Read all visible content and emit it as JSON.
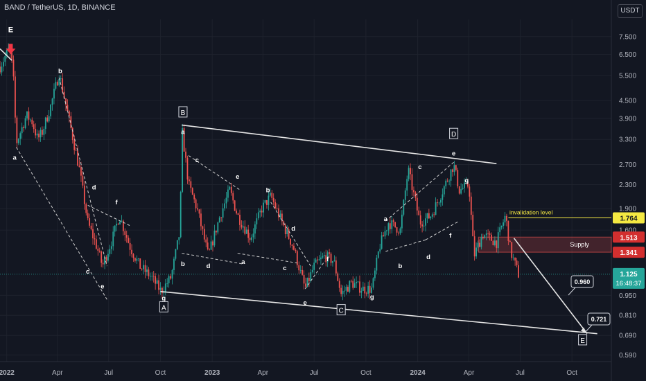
{
  "header": {
    "title": "BAND / TetherUS, 1D, BINANCE",
    "currency": "USDT"
  },
  "colors": {
    "background": "#131722",
    "up": "#26a69a",
    "down": "#ef5350",
    "grid": "#1e222d",
    "invalidation": "#f5e942",
    "supply": "#ef5350"
  },
  "chart_data": {
    "type": "candlestick",
    "yscale": "log",
    "ylim": [
      0.56,
      8.6
    ],
    "xlim": [
      "2021-12-20",
      "2024-12-10"
    ],
    "y_ticks": [
      "7.500",
      "6.500",
      "5.500",
      "4.500",
      "3.900",
      "3.300",
      "2.700",
      "2.300",
      "1.900",
      "1.600",
      "0.950",
      "0.810",
      "0.690",
      "0.590"
    ],
    "x_ticks": [
      {
        "date": "2022-01-01",
        "label": "2022"
      },
      {
        "date": "2022-04-01",
        "label": "Apr"
      },
      {
        "date": "2022-07-01",
        "label": "Jul"
      },
      {
        "date": "2022-10-01",
        "label": "Oct"
      },
      {
        "date": "2023-01-01",
        "label": "2023"
      },
      {
        "date": "2023-04-01",
        "label": "Apr"
      },
      {
        "date": "2023-07-01",
        "label": "Jul"
      },
      {
        "date": "2023-10-01",
        "label": "Oct"
      },
      {
        "date": "2024-01-01",
        "label": "2024"
      },
      {
        "date": "2024-04-01",
        "label": "Apr"
      },
      {
        "date": "2024-07-01",
        "label": "Jul"
      },
      {
        "date": "2024-10-01",
        "label": "Oct"
      }
    ],
    "price_path": [
      [
        "2021-12-20",
        5.9
      ],
      [
        "2022-01-05",
        6.8
      ],
      [
        "2022-01-12",
        5.8
      ],
      [
        "2022-01-18",
        3.2
      ],
      [
        "2022-02-05",
        4.0
      ],
      [
        "2022-02-15",
        3.8
      ],
      [
        "2022-02-25",
        3.3
      ],
      [
        "2022-03-05",
        3.5
      ],
      [
        "2022-03-20",
        4.3
      ],
      [
        "2022-04-04",
        5.6
      ],
      [
        "2022-04-20",
        4.0
      ],
      [
        "2022-05-10",
        2.6
      ],
      [
        "2022-05-25",
        1.7
      ],
      [
        "2022-06-10",
        1.4
      ],
      [
        "2022-06-20",
        1.2
      ],
      [
        "2022-07-08",
        1.5
      ],
      [
        "2022-07-20",
        1.8
      ],
      [
        "2022-08-08",
        1.4
      ],
      [
        "2022-08-25",
        1.2
      ],
      [
        "2022-09-15",
        1.1
      ],
      [
        "2022-10-02",
        0.98
      ],
      [
        "2022-10-20",
        1.1
      ],
      [
        "2022-11-05",
        1.6
      ],
      [
        "2022-11-08",
        3.6
      ],
      [
        "2022-11-20",
        2.3
      ],
      [
        "2022-12-05",
        1.9
      ],
      [
        "2022-12-25",
        1.3
      ],
      [
        "2023-01-15",
        1.8
      ],
      [
        "2023-02-01",
        2.2
      ],
      [
        "2023-02-15",
        1.8
      ],
      [
        "2023-03-10",
        1.5
      ],
      [
        "2023-03-30",
        1.9
      ],
      [
        "2023-04-15",
        2.1
      ],
      [
        "2023-05-05",
        1.7
      ],
      [
        "2023-05-25",
        1.4
      ],
      [
        "2023-06-15",
        1.0
      ],
      [
        "2023-07-01",
        1.2
      ],
      [
        "2023-07-20",
        1.3
      ],
      [
        "2023-08-05",
        1.25
      ],
      [
        "2023-08-18",
        0.96
      ],
      [
        "2023-09-05",
        1.05
      ],
      [
        "2023-09-25",
        1.0
      ],
      [
        "2023-10-12",
        1.0
      ],
      [
        "2023-10-25",
        1.4
      ],
      [
        "2023-11-10",
        1.7
      ],
      [
        "2023-12-01",
        1.6
      ],
      [
        "2023-12-15",
        2.6
      ],
      [
        "2024-01-05",
        1.7
      ],
      [
        "2024-01-25",
        1.8
      ],
      [
        "2024-02-10",
        2.1
      ],
      [
        "2024-03-05",
        2.7
      ],
      [
        "2024-03-15",
        2.2
      ],
      [
        "2024-04-01",
        2.3
      ],
      [
        "2024-04-10",
        1.3
      ],
      [
        "2024-04-25",
        1.55
      ],
      [
        "2024-05-20",
        1.45
      ],
      [
        "2024-06-05",
        1.8
      ],
      [
        "2024-06-14",
        1.35
      ],
      [
        "2024-06-28",
        1.125
      ]
    ],
    "last_price": {
      "value": 1.125,
      "label": "1.125",
      "countdown": "16:48:37"
    },
    "price_tags": [
      {
        "label": "1.764",
        "value": 1.764,
        "kind": "invalidation"
      },
      {
        "label": "1.513",
        "value": 1.513,
        "kind": "supply"
      },
      {
        "label": "1.341",
        "value": 1.341,
        "kind": "supply"
      }
    ],
    "annotations": {
      "invalidation_label": "invalidation level",
      "supply_label": "Supply",
      "target_1": "0.960",
      "target_2": "0.721"
    },
    "trendlines": [
      {
        "kind": "solid",
        "from": [
          "2022-10-01",
          0.98
        ],
        "to": [
          "2024-11-15",
          0.7
        ]
      },
      {
        "kind": "solid",
        "from": [
          "2022-11-08",
          3.7
        ],
        "to": [
          "2024-05-20",
          2.72
        ]
      },
      {
        "kind": "solid",
        "from": [
          "2021-12-20",
          6.8
        ],
        "to": [
          "2022-01-10",
          6.2
        ]
      },
      {
        "kind": "solid",
        "from": [
          "2024-06-20",
          1.5
        ],
        "to": [
          "2024-10-28",
          0.7
        ]
      },
      {
        "kind": "dashed",
        "from": [
          "2022-01-18",
          3.1
        ],
        "to": [
          "2022-06-28",
          0.92
        ]
      },
      {
        "kind": "dashed",
        "from": [
          "2022-04-04",
          5.4
        ],
        "to": [
          "2022-06-28",
          1.2
        ]
      },
      {
        "kind": "dashed",
        "from": [
          "2022-05-25",
          1.95
        ],
        "to": [
          "2022-08-10",
          1.65
        ]
      },
      {
        "kind": "dashed",
        "from": [
          "2022-11-08",
          1.33
        ],
        "to": [
          "2023-02-25",
          1.22
        ]
      },
      {
        "kind": "dashed",
        "from": [
          "2022-11-20",
          2.9
        ],
        "to": [
          "2023-02-20",
          2.2
        ]
      },
      {
        "kind": "dashed",
        "from": [
          "2023-02-15",
          1.33
        ],
        "to": [
          "2023-06-01",
          1.23
        ]
      },
      {
        "kind": "dashed",
        "from": [
          "2023-04-15",
          2.0
        ],
        "to": [
          "2023-06-25",
          1.2
        ]
      },
      {
        "kind": "dashed",
        "from": [
          "2023-06-15",
          1.0
        ],
        "to": [
          "2023-07-20",
          1.25
        ]
      },
      {
        "kind": "dashed",
        "from": [
          "2023-11-05",
          1.35
        ],
        "to": [
          "2024-01-15",
          1.48
        ]
      },
      {
        "kind": "dashed",
        "from": [
          "2023-11-05",
          1.72
        ],
        "to": [
          "2024-03-05",
          2.75
        ]
      },
      {
        "kind": "dashed",
        "from": [
          "2024-01-15",
          1.48
        ],
        "to": [
          "2024-03-15",
          1.72
        ]
      }
    ],
    "wave_labels": [
      {
        "text": "E",
        "date": "2022-01-08",
        "value": 7.9,
        "style": "bold"
      },
      {
        "text": "b",
        "date": "2022-04-06",
        "value": 5.7
      },
      {
        "text": "a",
        "date": "2022-01-15",
        "value": 2.85
      },
      {
        "text": "d",
        "date": "2022-06-05",
        "value": 2.25
      },
      {
        "text": "f",
        "date": "2022-07-15",
        "value": 2.0
      },
      {
        "text": "c",
        "date": "2022-05-25",
        "value": 1.15
      },
      {
        "text": "e",
        "date": "2022-06-20",
        "value": 1.02
      },
      {
        "text": "g",
        "date": "2022-10-07",
        "value": 0.93
      },
      {
        "text": "A",
        "date": "2022-10-07",
        "value": 0.865,
        "style": "boxed"
      },
      {
        "text": "B",
        "date": "2022-11-10",
        "value": 4.1,
        "style": "boxed"
      },
      {
        "text": "a",
        "date": "2022-11-10",
        "value": 3.5
      },
      {
        "text": "c",
        "date": "2022-12-05",
        "value": 2.8
      },
      {
        "text": "e",
        "date": "2023-02-15",
        "value": 2.45
      },
      {
        "text": "b",
        "date": "2022-11-10",
        "value": 1.22
      },
      {
        "text": "d",
        "date": "2022-12-25",
        "value": 1.2
      },
      {
        "text": "b",
        "date": "2023-04-10",
        "value": 2.2
      },
      {
        "text": "d",
        "date": "2023-05-25",
        "value": 1.62
      },
      {
        "text": "a",
        "date": "2023-02-25",
        "value": 1.24
      },
      {
        "text": "c",
        "date": "2023-05-10",
        "value": 1.18
      },
      {
        "text": "f",
        "date": "2023-07-25",
        "value": 1.27
      },
      {
        "text": "e",
        "date": "2023-06-15",
        "value": 0.895
      },
      {
        "text": "C",
        "date": "2023-08-18",
        "value": 0.845,
        "style": "boxed"
      },
      {
        "text": "g",
        "date": "2023-10-12",
        "value": 0.94
      },
      {
        "text": "a",
        "date": "2023-11-05",
        "value": 1.75
      },
      {
        "text": "c",
        "date": "2024-01-05",
        "value": 2.65
      },
      {
        "text": "b",
        "date": "2023-12-01",
        "value": 1.2
      },
      {
        "text": "d",
        "date": "2024-01-20",
        "value": 1.29
      },
      {
        "text": "D",
        "date": "2024-03-05",
        "value": 3.45,
        "style": "boxed"
      },
      {
        "text": "e",
        "date": "2024-03-05",
        "value": 2.95
      },
      {
        "text": "g",
        "date": "2024-03-28",
        "value": 2.38
      },
      {
        "text": "f",
        "date": "2024-02-28",
        "value": 1.53
      },
      {
        "text": "E",
        "date": "2024-10-20",
        "value": 0.665,
        "style": "boxed"
      }
    ]
  }
}
